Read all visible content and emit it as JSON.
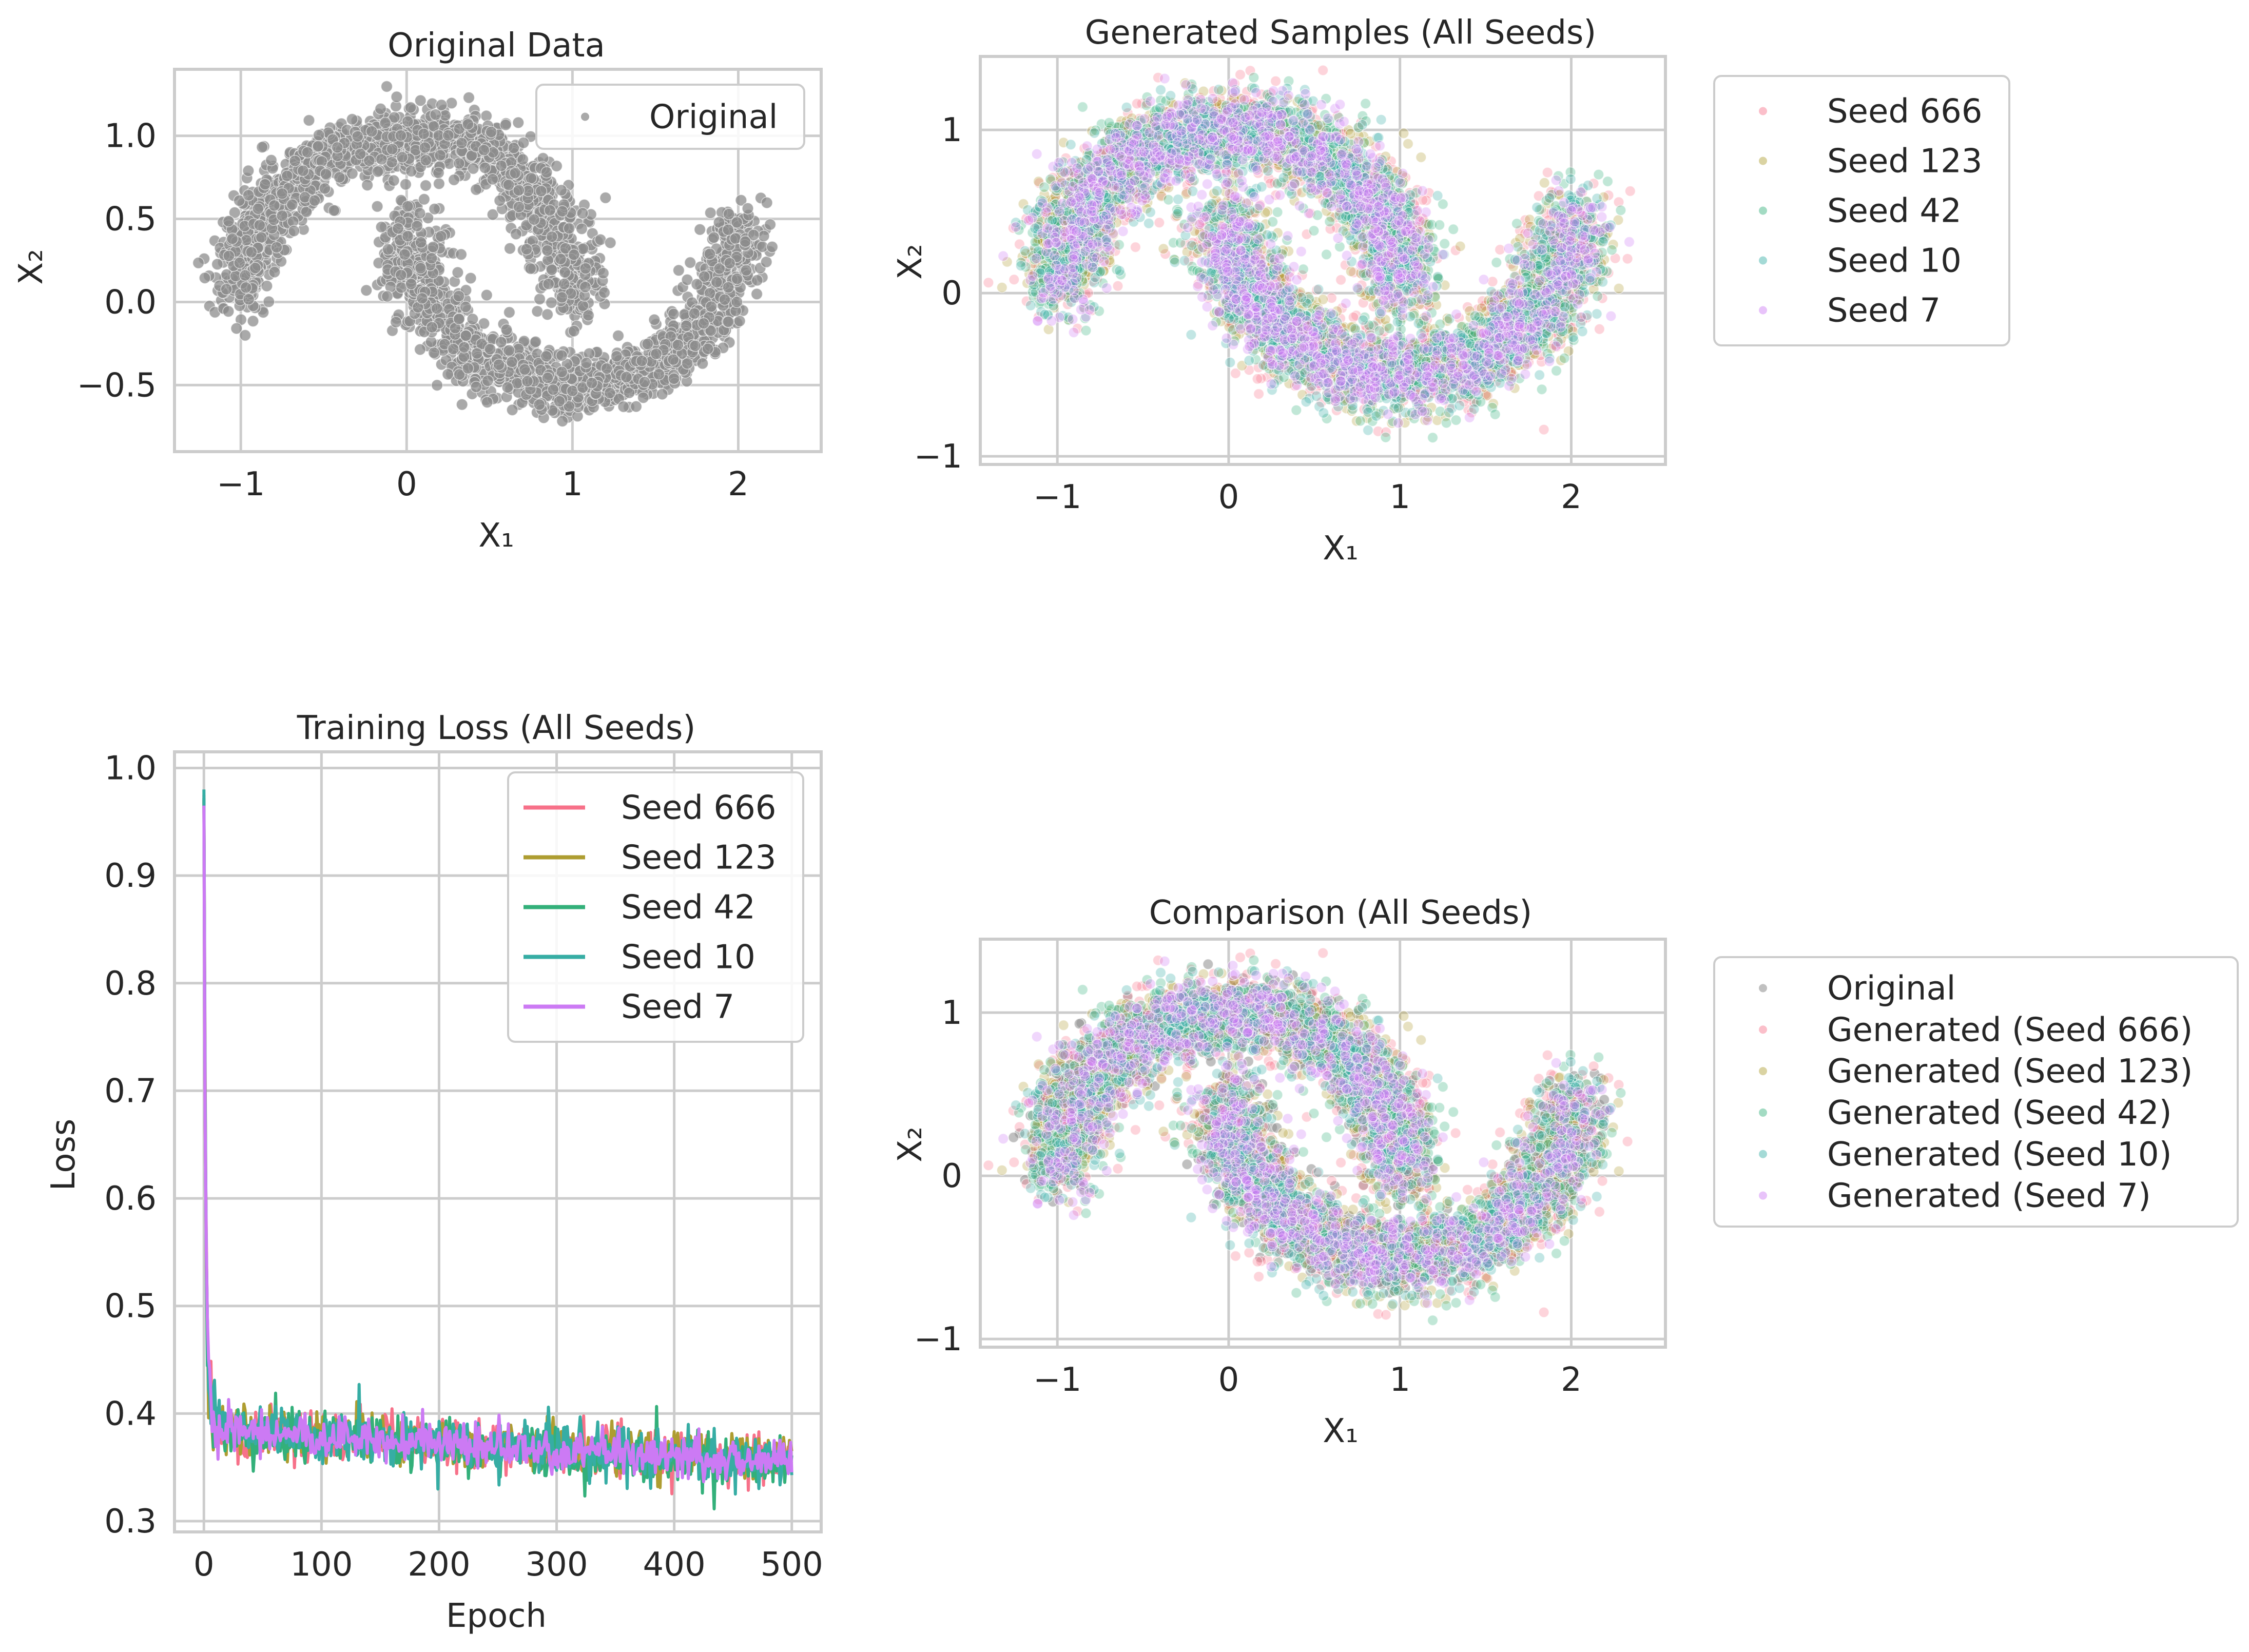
{
  "figure": {
    "background": "#ffffff",
    "grid_color": "#cccccc",
    "spine_color": "#cccccc",
    "text_color": "#262626"
  },
  "chart_data": [
    {
      "id": "original",
      "type": "scatter",
      "title": "Original Data",
      "xlabel": "X₁",
      "ylabel": "X₂",
      "xlim": [
        -1.4,
        2.5
      ],
      "ylim": [
        -0.9,
        1.4
      ],
      "xticks": [
        -1,
        0,
        1,
        2
      ],
      "xtick_labels": [
        "−1",
        "0",
        "1",
        "2"
      ],
      "yticks": [
        -0.5,
        0.0,
        0.5,
        1.0
      ],
      "ytick_labels": [
        "−0.5",
        "0.0",
        "0.5",
        "1.0"
      ],
      "grid": true,
      "legend_position": "top-right",
      "dataset": "two interleaving half-moons, upper arc centered (0,0) radius 1, lower arc centered (1,0.5) radius 1, noise about 0.1",
      "series": [
        {
          "name": "Original",
          "color": "#8c8c8c",
          "alpha": 0.75,
          "points": 3000,
          "seed": 1,
          "noise": 0.1
        }
      ]
    },
    {
      "id": "generated",
      "type": "scatter",
      "title": "Generated Samples (All Seeds)",
      "xlabel": "X₁",
      "ylabel": "X₂",
      "xlim": [
        -1.45,
        2.55
      ],
      "ylim": [
        -1.05,
        1.45
      ],
      "xticks": [
        -1,
        0,
        1,
        2
      ],
      "xtick_labels": [
        "−1",
        "0",
        "1",
        "2"
      ],
      "yticks": [
        -1,
        0,
        1
      ],
      "ytick_labels": [
        "−1",
        "0",
        "1"
      ],
      "grid": true,
      "legend_position": "outside-right",
      "series": [
        {
          "name": "Seed 666",
          "color": "#f77189",
          "alpha": 0.3,
          "points": 1600,
          "seed": 666,
          "noise": 0.13
        },
        {
          "name": "Seed 123",
          "color": "#ae9d31",
          "alpha": 0.3,
          "points": 1600,
          "seed": 123,
          "noise": 0.13
        },
        {
          "name": "Seed 42",
          "color": "#33b07a",
          "alpha": 0.3,
          "points": 1600,
          "seed": 42,
          "noise": 0.13
        },
        {
          "name": "Seed 10",
          "color": "#36ada4",
          "alpha": 0.3,
          "points": 1600,
          "seed": 10,
          "noise": 0.13
        },
        {
          "name": "Seed 7",
          "color": "#cc7af4",
          "alpha": 0.3,
          "points": 1600,
          "seed": 7,
          "noise": 0.13
        }
      ]
    },
    {
      "id": "loss",
      "type": "line",
      "title": "Training Loss (All Seeds)",
      "xlabel": "Epoch",
      "ylabel": "Loss",
      "xlim": [
        -25,
        525
      ],
      "ylim": [
        0.29,
        1.015
      ],
      "xticks": [
        0,
        100,
        200,
        300,
        400,
        500
      ],
      "xtick_labels": [
        "0",
        "100",
        "200",
        "300",
        "400",
        "500"
      ],
      "yticks": [
        0.3,
        0.4,
        0.5,
        0.6,
        0.7,
        0.8,
        0.9,
        1.0
      ],
      "ytick_labels": [
        "0.3",
        "0.4",
        "0.5",
        "0.6",
        "0.7",
        "0.8",
        "0.9",
        "1.0"
      ],
      "grid": true,
      "legend_position": "top-right",
      "epochs": 500,
      "curve_model": "loss(epoch) ≈ start then rapid decay to ~0.39 by epoch 10 and slow drift to ~0.355 by epoch 500, with noise amplitude ~0.012",
      "series": [
        {
          "name": "Seed 666",
          "color": "#f77189",
          "start": 0.975,
          "plateau_start": 0.385,
          "plateau_end": 0.355,
          "noise": 0.012,
          "seed": 666
        },
        {
          "name": "Seed 123",
          "color": "#ae9d31",
          "start": 0.97,
          "plateau_start": 0.388,
          "plateau_end": 0.356,
          "noise": 0.012,
          "seed": 123
        },
        {
          "name": "Seed 42",
          "color": "#33b07a",
          "start": 0.972,
          "plateau_start": 0.383,
          "plateau_end": 0.352,
          "noise": 0.012,
          "seed": 42
        },
        {
          "name": "Seed 10",
          "color": "#36ada4",
          "start": 0.98,
          "plateau_start": 0.386,
          "plateau_end": 0.354,
          "noise": 0.012,
          "seed": 10
        },
        {
          "name": "Seed 7",
          "color": "#cc7af4",
          "start": 0.965,
          "plateau_start": 0.384,
          "plateau_end": 0.355,
          "noise": 0.01,
          "seed": 7
        }
      ]
    },
    {
      "id": "comparison",
      "type": "scatter",
      "title": "Comparison (All Seeds)",
      "xlabel": "X₁",
      "ylabel": "X₂",
      "xlim": [
        -1.45,
        2.55
      ],
      "ylim": [
        -1.05,
        1.45
      ],
      "xticks": [
        -1,
        0,
        1,
        2
      ],
      "xtick_labels": [
        "−1",
        "0",
        "1",
        "2"
      ],
      "yticks": [
        -1,
        0,
        1
      ],
      "ytick_labels": [
        "−1",
        "0",
        "1"
      ],
      "grid": true,
      "legend_position": "outside-right",
      "series": [
        {
          "name": "Original",
          "color": "#8c8c8c",
          "alpha": 0.55,
          "points": 2000,
          "seed": 1,
          "noise": 0.1
        },
        {
          "name": "Generated (Seed 666)",
          "color": "#f77189",
          "alpha": 0.3,
          "points": 1300,
          "seed": 666,
          "noise": 0.13
        },
        {
          "name": "Generated (Seed 123)",
          "color": "#ae9d31",
          "alpha": 0.3,
          "points": 1300,
          "seed": 123,
          "noise": 0.13
        },
        {
          "name": "Generated (Seed 42)",
          "color": "#33b07a",
          "alpha": 0.3,
          "points": 1300,
          "seed": 42,
          "noise": 0.13
        },
        {
          "name": "Generated (Seed 10)",
          "color": "#36ada4",
          "alpha": 0.3,
          "points": 1300,
          "seed": 10,
          "noise": 0.13
        },
        {
          "name": "Generated (Seed 7)",
          "color": "#cc7af4",
          "alpha": 0.3,
          "points": 1300,
          "seed": 7,
          "noise": 0.13
        }
      ]
    }
  ]
}
